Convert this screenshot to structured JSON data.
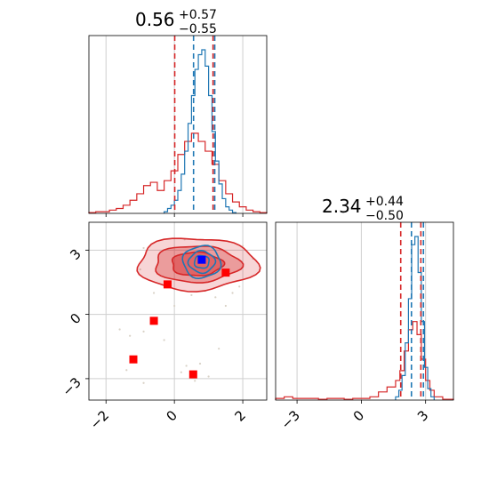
{
  "figure": {
    "type": "corner_plot",
    "colors": {
      "series_a": "#d62728",
      "series_b": "#1f77b4",
      "grid": "#cfcfcf",
      "truth_points": "#ff0000",
      "injected_point": "#0000ff"
    }
  },
  "chart_data": [
    {
      "type": "histogram",
      "panel": "top-left",
      "title": {
        "value": "0.56",
        "plus": "+0.57",
        "minus": "−0.55"
      },
      "xlim": [
        -2.5,
        2.7
      ],
      "grid": true,
      "series": [
        {
          "color": "#d62728",
          "bin_edges": [
            -2.5,
            -2.3,
            -2.1,
            -1.9,
            -1.7,
            -1.5,
            -1.3,
            -1.1,
            -0.9,
            -0.7,
            -0.5,
            -0.3,
            -0.1,
            0.1,
            0.3,
            0.5,
            0.7,
            0.9,
            1.1,
            1.3,
            1.5,
            1.7,
            1.9,
            2.1,
            2.3,
            2.5,
            2.7
          ],
          "counts": [
            0.005,
            0.01,
            0.01,
            0.02,
            0.03,
            0.05,
            0.08,
            0.12,
            0.17,
            0.19,
            0.14,
            0.2,
            0.26,
            0.36,
            0.44,
            0.49,
            0.44,
            0.38,
            0.3,
            0.2,
            0.12,
            0.07,
            0.04,
            0.02,
            0.01,
            0.005
          ]
        },
        {
          "color": "#1f77b4",
          "bin_edges": [
            -0.3,
            -0.2,
            -0.1,
            0.0,
            0.1,
            0.2,
            0.3,
            0.4,
            0.5,
            0.6,
            0.7,
            0.8,
            0.9,
            1.0,
            1.1,
            1.2,
            1.3,
            1.4,
            1.5,
            1.6,
            1.7,
            1.8
          ],
          "counts": [
            0.01,
            0.03,
            0.05,
            0.08,
            0.14,
            0.24,
            0.38,
            0.55,
            0.72,
            0.88,
            0.97,
            1.0,
            0.9,
            0.72,
            0.5,
            0.32,
            0.18,
            0.09,
            0.04,
            0.02,
            0.005
          ]
        }
      ],
      "vlines": [
        {
          "x": 0.01,
          "color": "#d62728"
        },
        {
          "x": 0.56,
          "color": "#1f77b4"
        },
        {
          "x": 1.13,
          "color": "#d62728"
        },
        {
          "x": 1.18,
          "color": "#1f77b4"
        }
      ]
    },
    {
      "type": "contour_scatter",
      "panel": "bottom-left",
      "xlim": [
        -2.5,
        2.7
      ],
      "ylim": [
        -4.0,
        4.3
      ],
      "xticks": [
        {
          "v": -2,
          "label": "−2"
        },
        {
          "v": 0,
          "label": "0"
        },
        {
          "v": 2,
          "label": "2"
        }
      ],
      "yticks": [
        {
          "v": 3,
          "label": "3"
        },
        {
          "v": 0,
          "label": "0"
        },
        {
          "v": -3,
          "label": "−3"
        }
      ],
      "grid": true,
      "red_contours": {
        "center": [
          0.65,
          2.35
        ],
        "levels": [
          {
            "rx": 1.75,
            "ry": 1.22,
            "fill_opacity": 0.35
          },
          {
            "rx": 1.25,
            "ry": 0.85,
            "fill_opacity": 0.6
          },
          {
            "rx": 0.75,
            "ry": 0.55,
            "fill_opacity": 0.85
          }
        ]
      },
      "blue_contours": {
        "center": [
          0.8,
          2.45
        ],
        "levels": [
          {
            "rx": 0.55,
            "ry": 0.75
          },
          {
            "rx": 0.38,
            "ry": 0.5
          },
          {
            "rx": 0.22,
            "ry": 0.3
          }
        ]
      },
      "red_squares": [
        [
          -0.2,
          1.4
        ],
        [
          1.5,
          1.95
        ],
        [
          -0.6,
          -0.3
        ],
        [
          -1.2,
          -2.1
        ],
        [
          0.55,
          -2.8
        ]
      ],
      "blue_square": [
        0.8,
        2.55
      ],
      "scatter": [
        [
          -1.6,
          -0.7
        ],
        [
          -1.3,
          -1.0
        ],
        [
          -0.9,
          -0.8
        ],
        [
          -1.4,
          -2.6
        ],
        [
          -0.9,
          -3.2
        ],
        [
          0.35,
          -2.4
        ],
        [
          0.75,
          -2.3
        ],
        [
          1.0,
          -2.9
        ],
        [
          0.6,
          -3.1
        ],
        [
          0.2,
          -2.7
        ],
        [
          1.3,
          -1.6
        ],
        [
          1.7,
          1.0
        ],
        [
          1.9,
          1.3
        ],
        [
          -0.6,
          1.0
        ],
        [
          -0.9,
          3.1
        ],
        [
          2.3,
          2.6
        ],
        [
          1.2,
          0.8
        ],
        [
          0.0,
          0.4
        ],
        [
          -0.3,
          -1.2
        ],
        [
          1.5,
          0.4
        ],
        [
          -1.0,
          2.1
        ],
        [
          2.0,
          3.2
        ],
        [
          0.5,
          0.9
        ],
        [
          0.9,
          1.1
        ],
        [
          0.3,
          3.5
        ]
      ]
    },
    {
      "type": "histogram",
      "panel": "bottom-right",
      "title": {
        "value": "2.34",
        "plus": "+0.44",
        "minus": "−0.50"
      },
      "xlim": [
        -4.0,
        4.3
      ],
      "xticks": [
        {
          "v": -3,
          "label": "−3"
        },
        {
          "v": 0,
          "label": "0"
        },
        {
          "v": 3,
          "label": "3"
        }
      ],
      "grid": true,
      "series": [
        {
          "color": "#d62728",
          "bin_edges": [
            -4.0,
            -3.6,
            -3.2,
            -2.8,
            -2.4,
            -2.0,
            -1.6,
            -1.2,
            -0.8,
            -0.4,
            0.0,
            0.4,
            0.8,
            1.2,
            1.6,
            1.8,
            2.0,
            2.2,
            2.4,
            2.6,
            2.8,
            3.0,
            3.2,
            3.4,
            3.8,
            4.3
          ],
          "counts": [
            0.01,
            0.02,
            0.01,
            0.01,
            0.01,
            0.005,
            0.01,
            0.01,
            0.005,
            0.01,
            0.01,
            0.02,
            0.05,
            0.08,
            0.12,
            0.18,
            0.3,
            0.43,
            0.48,
            0.4,
            0.25,
            0.12,
            0.06,
            0.02,
            0.005
          ]
        },
        {
          "color": "#1f77b4",
          "bin_edges": [
            1.6,
            1.75,
            1.9,
            2.05,
            2.2,
            2.35,
            2.5,
            2.65,
            2.8,
            2.95,
            3.1,
            3.25,
            3.4
          ],
          "counts": [
            0.02,
            0.06,
            0.15,
            0.35,
            0.62,
            0.95,
            1.0,
            0.78,
            0.48,
            0.2,
            0.07,
            0.02
          ]
        }
      ],
      "vlines": [
        {
          "x": 1.84,
          "color": "#d62728"
        },
        {
          "x": 2.34,
          "color": "#1f77b4"
        },
        {
          "x": 2.78,
          "color": "#d62728"
        },
        {
          "x": 2.9,
          "color": "#1f77b4"
        }
      ]
    }
  ]
}
